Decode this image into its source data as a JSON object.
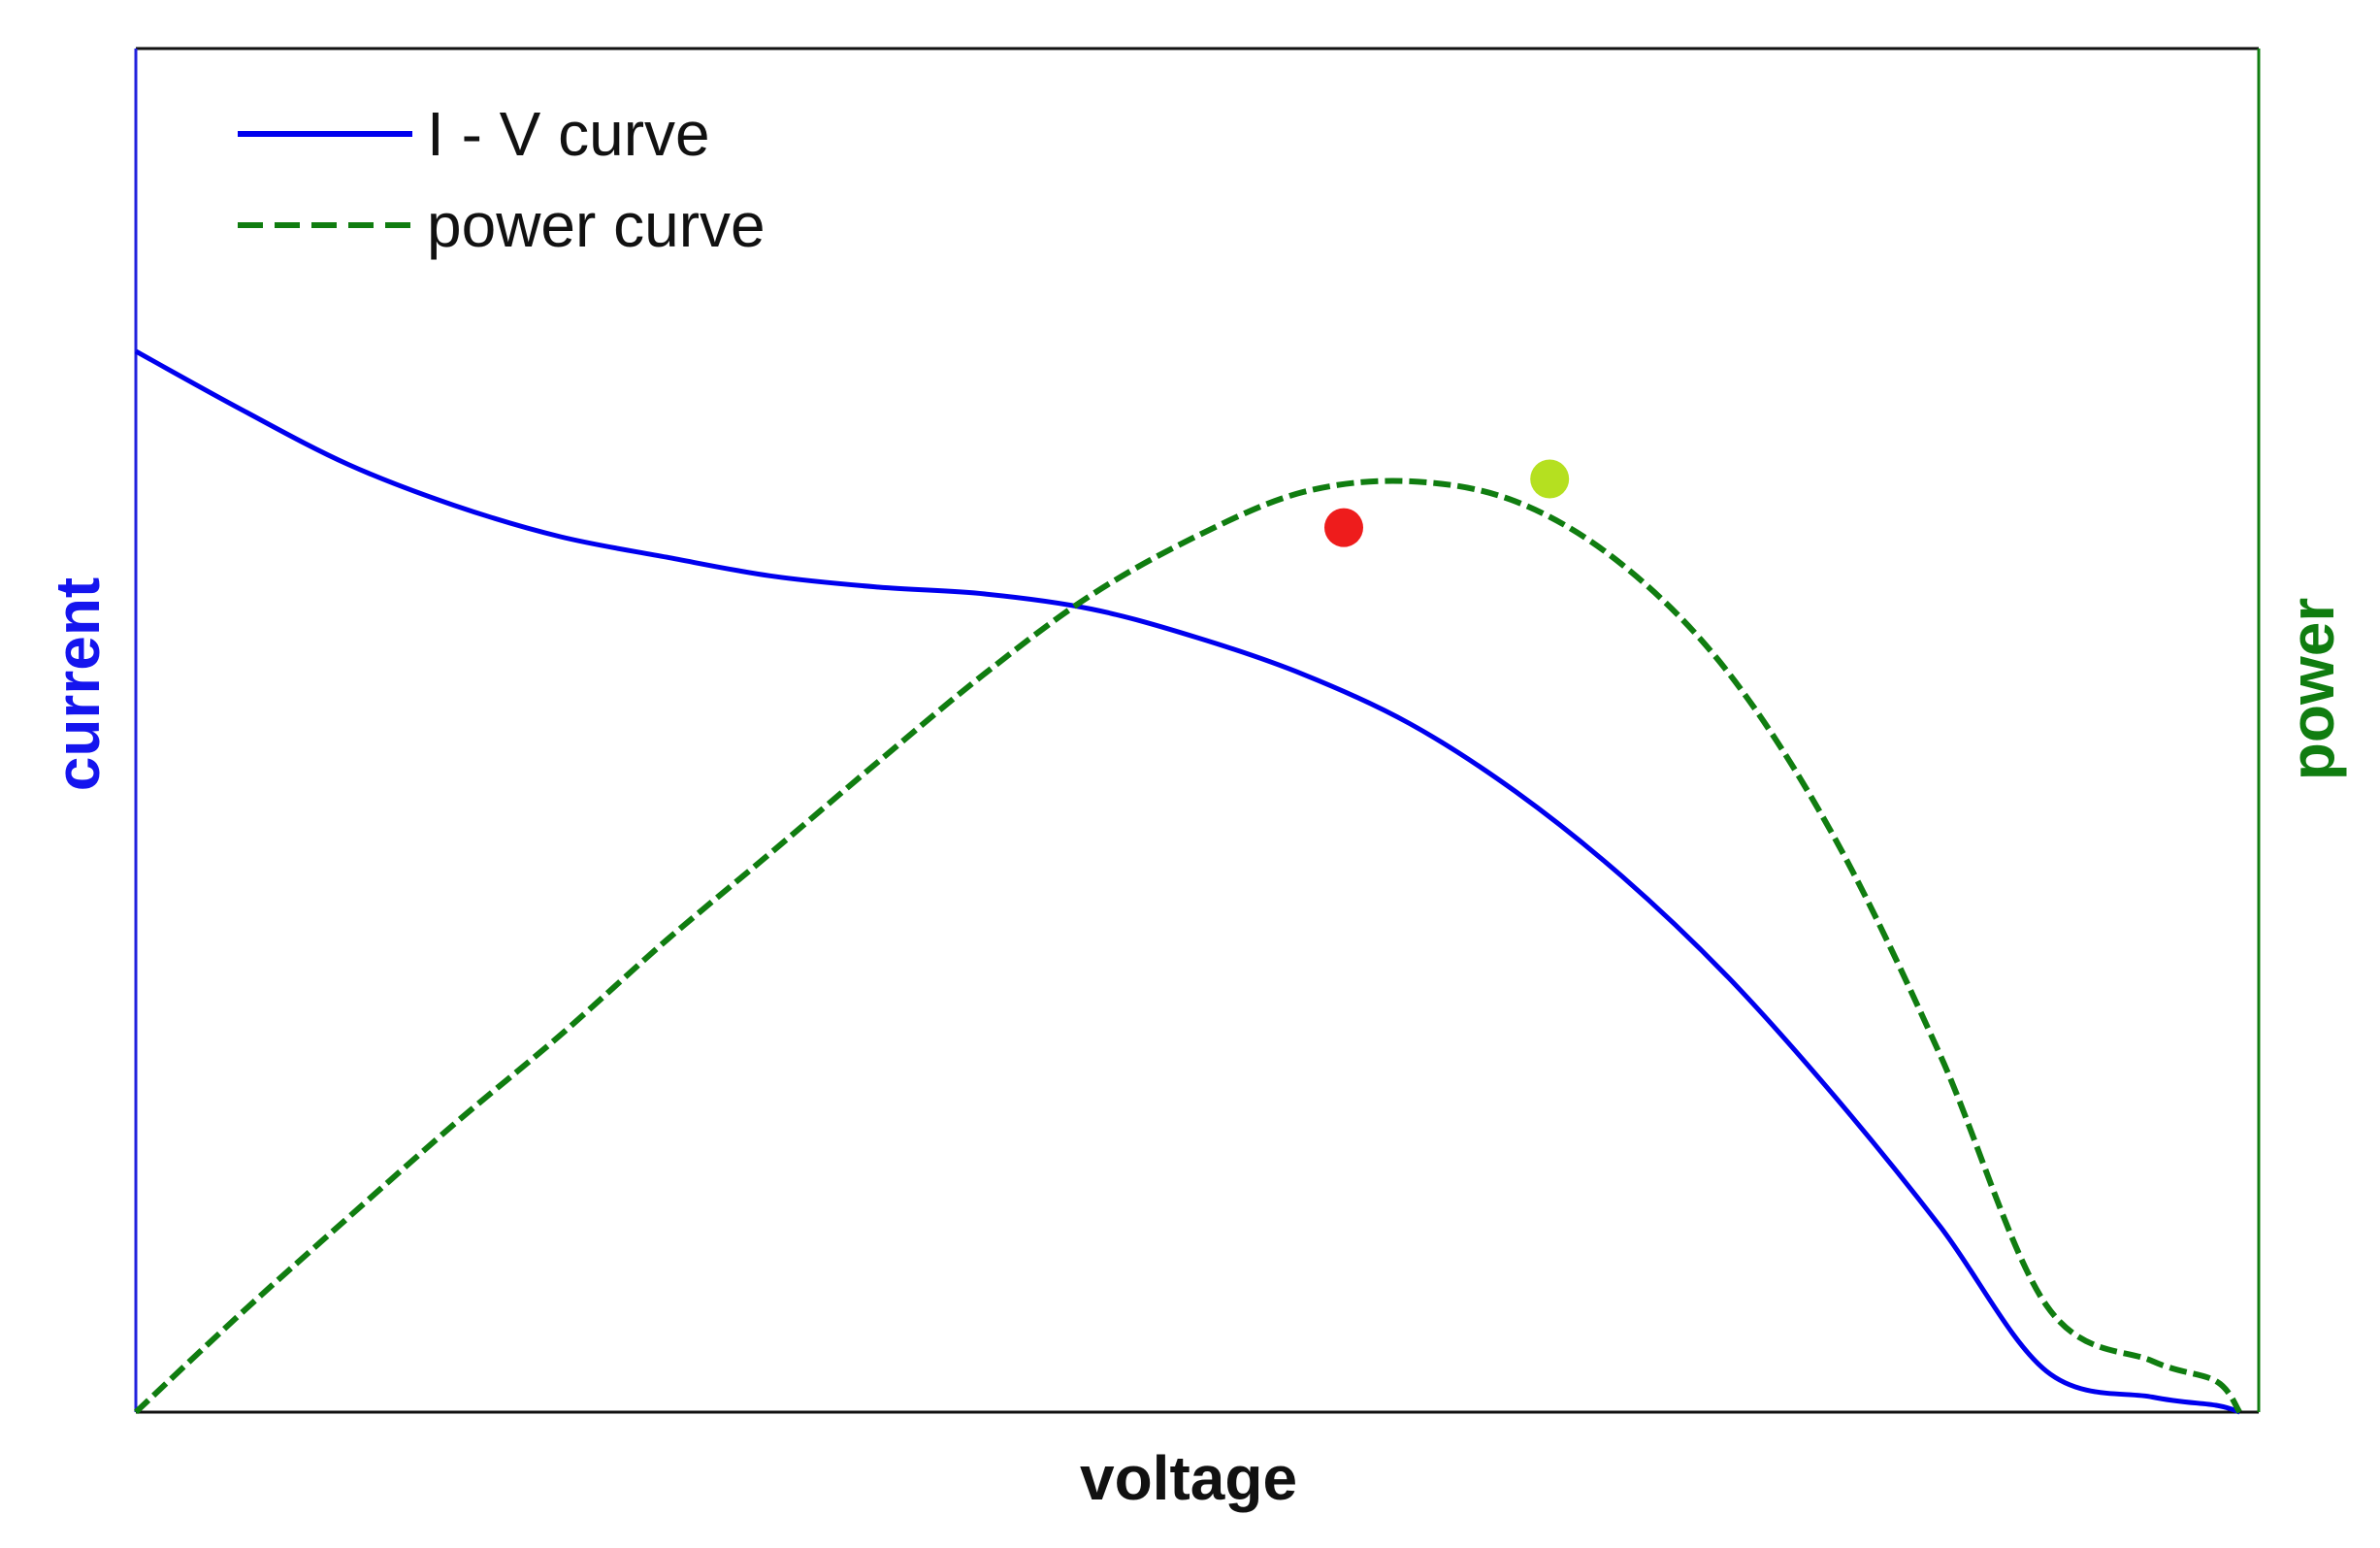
{
  "chart_data": {
    "type": "line",
    "title": "",
    "xlabel": "voltage",
    "ylabel_left": "current",
    "ylabel_right": "power",
    "xlim": [
      0,
      1
    ],
    "ylim_left": [
      0,
      1
    ],
    "ylim_right": [
      0,
      1.15
    ],
    "grid": false,
    "legend_position": "top-left",
    "x": [
      0,
      0.05,
      0.1,
      0.15,
      0.2,
      0.25,
      0.3,
      0.35,
      0.4,
      0.45,
      0.5,
      0.55,
      0.6,
      0.65,
      0.7,
      0.75,
      0.8,
      0.85,
      0.9,
      0.95,
      0.98,
      0.991
    ],
    "series": [
      {
        "name": "I - V curve",
        "axis": "left",
        "style": "solid",
        "color": "#0000ee",
        "values": [
          0.778,
          0.735,
          0.695,
          0.665,
          0.642,
          0.627,
          0.613,
          0.605,
          0.6,
          0.589,
          0.568,
          0.541,
          0.505,
          0.455,
          0.393,
          0.319,
          0.232,
          0.136,
          0.03,
          0.011,
          0.005,
          0.0
        ]
      },
      {
        "name": "power curve",
        "axis": "right",
        "style": "dashed",
        "color": "#107d10",
        "values": [
          0.0,
          0.084,
          0.164,
          0.243,
          0.318,
          0.398,
          0.473,
          0.549,
          0.623,
          0.689,
          0.739,
          0.776,
          0.785,
          0.768,
          0.715,
          0.624,
          0.485,
          0.301,
          0.09,
          0.043,
          0.026,
          0.0
        ]
      }
    ],
    "markers": [
      {
        "x": 0.569,
        "y": 0.746,
        "axis": "right",
        "color": "#ee1c1c"
      },
      {
        "x": 0.666,
        "y": 0.787,
        "axis": "right",
        "color": "#b5e020"
      }
    ]
  },
  "colors": {
    "frame_left": "#2020dd",
    "frame_right": "#107d10",
    "frame_other": "#111111",
    "xlabel": "#111111",
    "ylabel_left": "#1515ee",
    "ylabel_right": "#107d10"
  }
}
